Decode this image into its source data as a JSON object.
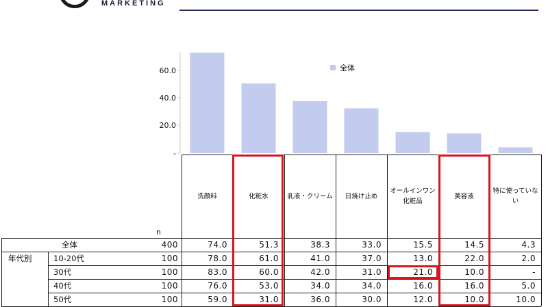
{
  "header": {
    "brand": "MARKETING"
  },
  "chart_data": {
    "type": "bar",
    "categories": [
      "洗顔料",
      "化粧水",
      "乳液・クリーム",
      "日焼け止め",
      "オールインワン化粧品",
      "美容液",
      "特に使っていない"
    ],
    "category_lines": [
      [
        "洗顔料"
      ],
      [
        "化粧水"
      ],
      [
        "乳液・クリーム"
      ],
      [
        "日焼け止め"
      ],
      [
        "オールインワン",
        "化粧品"
      ],
      [
        "美容液"
      ],
      [
        "特に使っていな",
        "い"
      ]
    ],
    "series": [
      {
        "name": "全体",
        "values": [
          74.0,
          51.3,
          38.3,
          33.0,
          15.5,
          14.5,
          4.3
        ]
      }
    ],
    "yticks": [
      "60.0",
      "40.0",
      "20.0",
      "-"
    ],
    "ylim": [
      0,
      75
    ],
    "bar_color": "#c3cbee",
    "legend_position": "top-right"
  },
  "table": {
    "n_header": "n",
    "group_label": "年代別",
    "rows": [
      {
        "label": "全体",
        "n": "400",
        "values": [
          "74.0",
          "51.3",
          "38.3",
          "33.0",
          "15.5",
          "14.5",
          "4.3"
        ]
      },
      {
        "label": "10-20代",
        "n": "100",
        "values": [
          "78.0",
          "61.0",
          "41.0",
          "37.0",
          "13.0",
          "22.0",
          "2.0"
        ]
      },
      {
        "label": "30代",
        "n": "100",
        "values": [
          "83.0",
          "60.0",
          "42.0",
          "31.0",
          "21.0",
          "10.0",
          "-"
        ]
      },
      {
        "label": "40代",
        "n": "100",
        "values": [
          "76.0",
          "53.0",
          "34.0",
          "34.0",
          "16.0",
          "16.0",
          "5.0"
        ]
      },
      {
        "label": "50代",
        "n": "100",
        "values": [
          "59.0",
          "31.0",
          "36.0",
          "30.0",
          "12.0",
          "10.0",
          "10.0"
        ]
      }
    ],
    "highlight_color": "#d9141b"
  }
}
